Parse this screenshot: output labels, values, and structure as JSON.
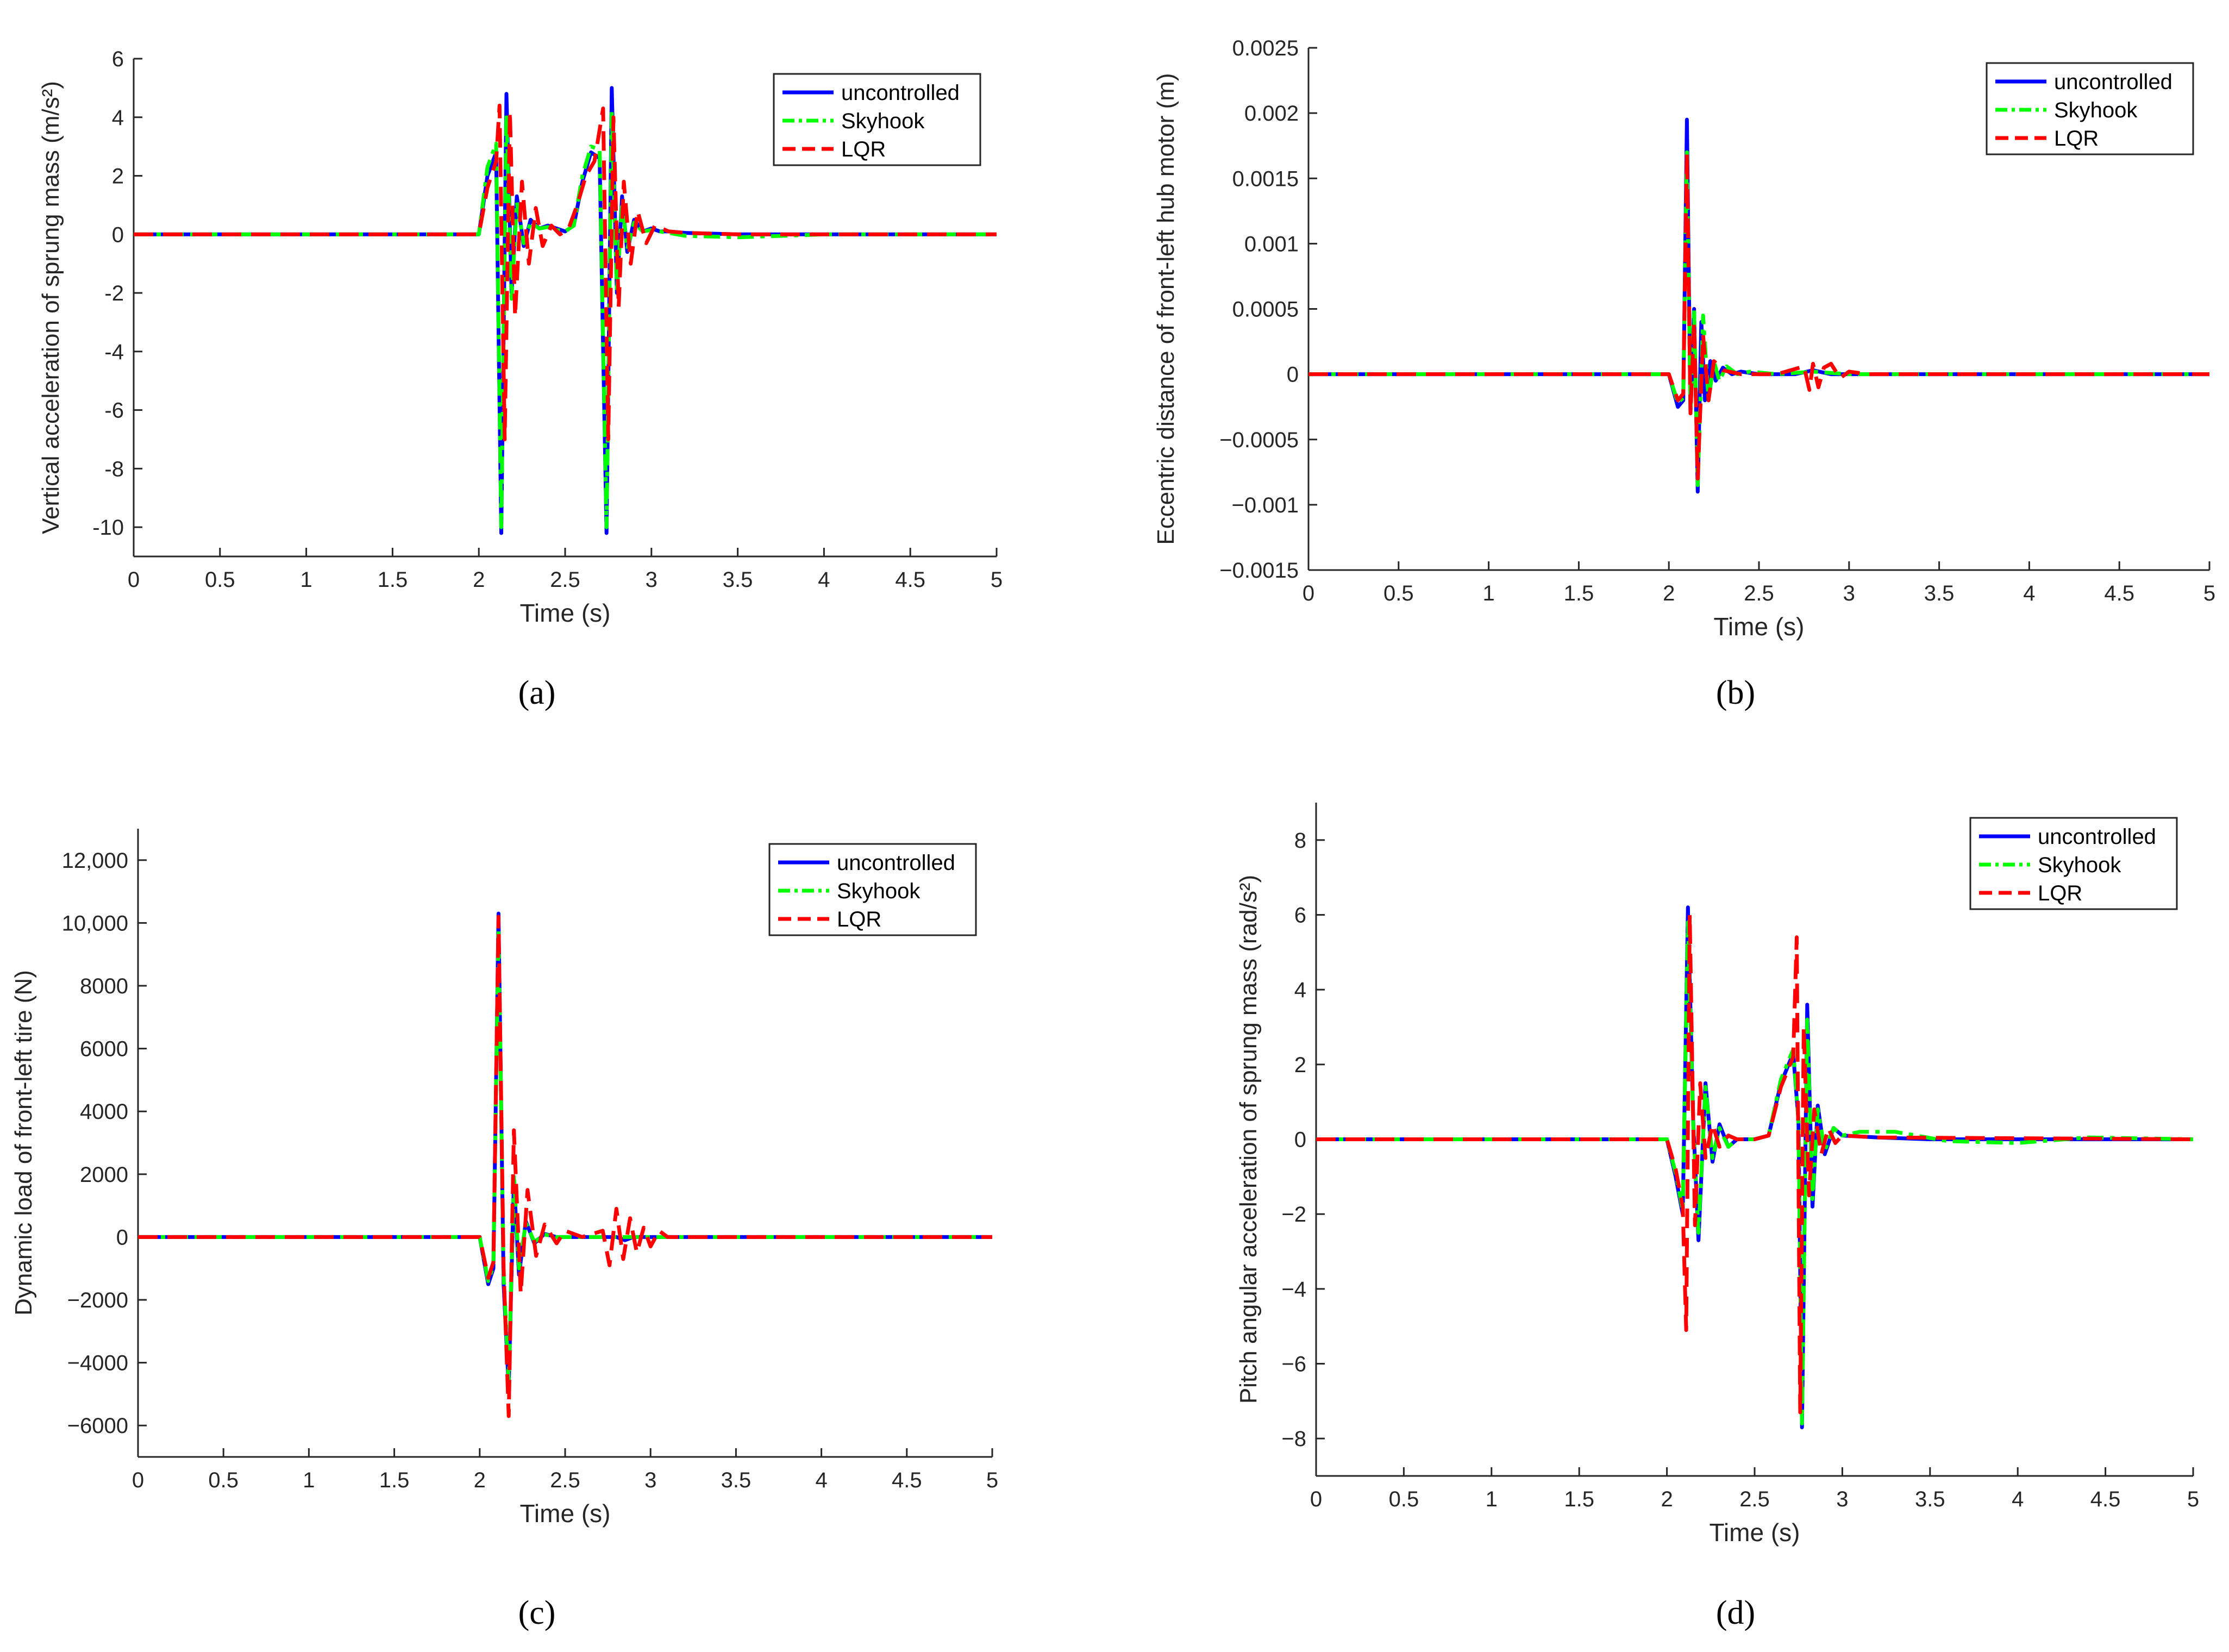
{
  "figure": {
    "panels": [
      {
        "label": "(a)"
      },
      {
        "label": "(b)"
      },
      {
        "label": "(c)"
      },
      {
        "label": "(d)"
      }
    ]
  },
  "series_styles": [
    {
      "name": "uncontrolled",
      "color": "#0000ff",
      "dash": "solid"
    },
    {
      "name": "Skyhook",
      "color": "#00ff00",
      "dash": "dashdot"
    },
    {
      "name": "LQR",
      "color": "#ff0000",
      "dash": "dashed"
    }
  ],
  "chart_data": [
    {
      "type": "line",
      "panel_label": "(a)",
      "title": "",
      "xlabel": "Time (s)",
      "ylabel": "Vertical acceleration of sprung mass (m/s²)",
      "xlim": [
        0,
        5
      ],
      "ylim": [
        -11,
        6
      ],
      "xticks": [
        0,
        0.5,
        1,
        1.5,
        2,
        2.5,
        3,
        3.5,
        4,
        4.5,
        5
      ],
      "xtick_labels": [
        "0",
        "0.5",
        "1",
        "1.5",
        "2",
        "2.5",
        "3",
        "3.5",
        "4",
        "4.5",
        "5"
      ],
      "yticks": [
        -10,
        -8,
        -6,
        -4,
        -2,
        0,
        2,
        4,
        6
      ],
      "ytick_labels": [
        "-10",
        "-8",
        "-6",
        "-4",
        "-2",
        "0",
        "2",
        "4",
        "6"
      ],
      "legend_position": "top-right",
      "series": [
        {
          "name": "uncontrolled",
          "x": [
            0,
            2.0,
            2.05,
            2.1,
            2.13,
            2.16,
            2.19,
            2.22,
            2.26,
            2.3,
            2.35,
            2.4,
            2.45,
            2.5,
            2.55,
            2.6,
            2.65,
            2.7,
            2.74,
            2.77,
            2.8,
            2.83,
            2.86,
            2.9,
            2.95,
            3.0,
            3.05,
            3.1,
            3.2,
            3.5,
            4.0,
            5.0
          ],
          "y": [
            0,
            0,
            2.0,
            2.8,
            -10.2,
            4.8,
            -2.0,
            1.3,
            -0.4,
            0.5,
            0.2,
            0.3,
            0.2,
            0.1,
            0.3,
            1.8,
            2.8,
            2.6,
            -10.2,
            5.0,
            -2.0,
            1.3,
            -0.6,
            0.5,
            0.1,
            0.2,
            0.1,
            0.1,
            0.05,
            0,
            0,
            0
          ]
        },
        {
          "name": "Skyhook",
          "x": [
            0,
            2.0,
            2.05,
            2.1,
            2.13,
            2.16,
            2.19,
            2.22,
            2.26,
            2.3,
            2.35,
            2.4,
            2.45,
            2.5,
            2.55,
            2.6,
            2.65,
            2.7,
            2.74,
            2.77,
            2.8,
            2.83,
            2.86,
            2.9,
            2.95,
            3.0,
            3.05,
            3.1,
            3.2,
            3.5,
            4.0,
            5.0
          ],
          "y": [
            0,
            0,
            2.3,
            3.1,
            -10.0,
            4.1,
            -2.2,
            1.1,
            -0.3,
            0.4,
            0.2,
            0.25,
            0.15,
            0.1,
            0.3,
            2.0,
            3.0,
            2.9,
            -10.0,
            4.2,
            -2.0,
            1.1,
            -0.5,
            0.4,
            0.1,
            0.15,
            0.1,
            0.05,
            -0.05,
            -0.1,
            0,
            0
          ]
        },
        {
          "name": "LQR",
          "x": [
            0,
            2.0,
            2.05,
            2.1,
            2.12,
            2.15,
            2.18,
            2.21,
            2.25,
            2.29,
            2.33,
            2.37,
            2.42,
            2.47,
            2.52,
            2.57,
            2.62,
            2.67,
            2.72,
            2.75,
            2.78,
            2.81,
            2.84,
            2.88,
            2.92,
            2.97,
            3.02,
            3.1,
            3.2,
            3.5,
            5.0
          ],
          "y": [
            0,
            0,
            1.6,
            2.5,
            4.4,
            -7.0,
            4.2,
            -2.8,
            1.8,
            -1.0,
            0.9,
            -0.4,
            0.3,
            0.0,
            0.2,
            1.0,
            2.0,
            2.5,
            4.3,
            -7.0,
            4.0,
            -2.5,
            1.8,
            -1.0,
            0.8,
            -0.3,
            0.3,
            0.1,
            0.05,
            0,
            0
          ]
        }
      ]
    },
    {
      "type": "line",
      "panel_label": "(b)",
      "title": "",
      "xlabel": "Time (s)",
      "ylabel": "Eccentric distance of front-left hub motor (m)",
      "xlim": [
        0,
        5
      ],
      "ylim": [
        -0.0015,
        0.0025
      ],
      "xticks": [
        0,
        0.5,
        1,
        1.5,
        2,
        2.5,
        3,
        3.5,
        4,
        4.5,
        5
      ],
      "xtick_labels": [
        "0",
        "0.5",
        "1",
        "1.5",
        "2",
        "2.5",
        "3",
        "3.5",
        "4",
        "4.5",
        "5"
      ],
      "yticks": [
        -0.0015,
        -0.001,
        -0.0005,
        0,
        0.0005,
        0.001,
        0.0015,
        0.002,
        0.0025
      ],
      "ytick_labels": [
        "−0.0015",
        "−0.001",
        "−0.0005",
        "0",
        "0.0005",
        "0.001",
        "0.0015",
        "0.002",
        "0.0025"
      ],
      "legend_position": "top-right",
      "series": [
        {
          "name": "uncontrolled",
          "x": [
            0,
            2.0,
            2.05,
            2.08,
            2.1,
            2.12,
            2.14,
            2.16,
            2.18,
            2.2,
            2.23,
            2.26,
            2.3,
            2.35,
            2.4,
            2.5,
            2.7,
            2.8,
            2.9,
            3.0,
            5.0
          ],
          "y": [
            0,
            0,
            -0.00025,
            -0.0002,
            0.00195,
            -0.0003,
            0.0005,
            -0.0009,
            0.0004,
            -0.0002,
            0.0001,
            -5e-05,
            5e-05,
            0.0,
            2e-05,
            0.0,
            0.0,
            3e-05,
            0.0,
            0.0,
            0
          ]
        },
        {
          "name": "Skyhook",
          "x": [
            0,
            2.0,
            2.05,
            2.08,
            2.1,
            2.12,
            2.14,
            2.16,
            2.19,
            2.22,
            2.25,
            2.28,
            2.32,
            2.38,
            2.45,
            2.6,
            2.8,
            3.0,
            5.0
          ],
          "y": [
            0,
            0,
            -0.00022,
            -0.00018,
            0.0017,
            -0.0003,
            0.0005,
            -0.00085,
            0.00045,
            -0.0002,
            0.0001,
            -5e-05,
            6e-05,
            0.0,
            2e-05,
            0.0,
            2e-05,
            0.0,
            0
          ]
        },
        {
          "name": "LQR",
          "x": [
            0,
            2.0,
            2.05,
            2.08,
            2.1,
            2.12,
            2.14,
            2.16,
            2.19,
            2.22,
            2.25,
            2.3,
            2.4,
            2.6,
            2.75,
            2.78,
            2.8,
            2.83,
            2.86,
            2.9,
            2.95,
            3.0,
            3.1,
            5.0
          ],
          "y": [
            0,
            0,
            -0.0002,
            -0.00015,
            0.0017,
            -0.0003,
            0.0004,
            -0.0008,
            0.0003,
            -0.0002,
            0.0001,
            3e-05,
            0.0,
            0.0,
            6e-05,
            -0.00012,
            8e-05,
            -0.0001,
            5e-05,
            8e-05,
            -3e-05,
            2e-05,
            0.0,
            0
          ]
        }
      ]
    },
    {
      "type": "line",
      "panel_label": "(c)",
      "title": "",
      "xlabel": "Time (s)",
      "ylabel": "Dynamic load of front-left tire (N)",
      "xlim": [
        0,
        5
      ],
      "ylim": [
        -7000,
        13000
      ],
      "xticks": [
        0,
        0.5,
        1,
        1.5,
        2,
        2.5,
        3,
        3.5,
        4,
        4.5,
        5
      ],
      "xtick_labels": [
        "0",
        "0.5",
        "1",
        "1.5",
        "2",
        "2.5",
        "3",
        "3.5",
        "4",
        "4.5",
        "5"
      ],
      "yticks": [
        -6000,
        -4000,
        -2000,
        0,
        2000,
        4000,
        6000,
        8000,
        10000,
        12000
      ],
      "ytick_labels": [
        "−6000",
        "−4000",
        "−2000",
        "0",
        "2000",
        "4000",
        "6000",
        "8000",
        "10,000",
        "12,000"
      ],
      "legend_position": "top-right",
      "series": [
        {
          "name": "uncontrolled",
          "x": [
            0,
            2.0,
            2.05,
            2.08,
            2.11,
            2.14,
            2.17,
            2.2,
            2.23,
            2.27,
            2.32,
            2.38,
            2.45,
            2.6,
            2.8,
            2.85,
            2.9,
            3.0,
            5.0
          ],
          "y": [
            0,
            0,
            -1500,
            -1000,
            10300,
            -1500,
            -4800,
            1800,
            -1200,
            500,
            -200,
            100,
            0,
            0,
            0,
            -100,
            0,
            0,
            0
          ]
        },
        {
          "name": "Skyhook",
          "x": [
            0,
            2.0,
            2.05,
            2.08,
            2.11,
            2.14,
            2.17,
            2.2,
            2.23,
            2.27,
            2.32,
            2.38,
            2.45,
            2.6,
            2.8,
            3.0,
            5.0
          ],
          "y": [
            0,
            0,
            -1400,
            -900,
            9800,
            -1200,
            -4600,
            2000,
            -1000,
            450,
            -150,
            80,
            0,
            0,
            0,
            0,
            0
          ]
        },
        {
          "name": "LQR",
          "x": [
            0,
            2.0,
            2.05,
            2.08,
            2.11,
            2.14,
            2.17,
            2.2,
            2.24,
            2.28,
            2.33,
            2.38,
            2.45,
            2.5,
            2.6,
            2.72,
            2.76,
            2.8,
            2.84,
            2.88,
            2.92,
            2.96,
            3.0,
            3.05,
            3.1,
            3.2,
            5.0
          ],
          "y": [
            0,
            0,
            -1300,
            -800,
            10200,
            -1000,
            -5700,
            3400,
            -1800,
            1500,
            -600,
            400,
            -200,
            200,
            0,
            200,
            -900,
            900,
            -700,
            600,
            -500,
            300,
            -300,
            200,
            0,
            0,
            0
          ]
        }
      ]
    },
    {
      "type": "line",
      "panel_label": "(d)",
      "title": "",
      "xlabel": "Time (s)",
      "ylabel": "Pitch angular acceleration of sprung mass (rad/s²)",
      "xlim": [
        0,
        5
      ],
      "ylim": [
        -9,
        9
      ],
      "xticks": [
        0,
        0.5,
        1,
        1.5,
        2,
        2.5,
        3,
        3.5,
        4,
        4.5,
        5
      ],
      "xtick_labels": [
        "0",
        "0.5",
        "1",
        "1.5",
        "2",
        "2.5",
        "3",
        "3.5",
        "4",
        "4.5",
        "5"
      ],
      "yticks": [
        -8,
        -6,
        -4,
        -2,
        0,
        2,
        4,
        6,
        8
      ],
      "ytick_labels": [
        "−8",
        "−6",
        "−4",
        "−2",
        "0",
        "2",
        "4",
        "6",
        "8"
      ],
      "legend_position": "top-right",
      "series": [
        {
          "name": "uncontrolled",
          "x": [
            0,
            2.0,
            2.05,
            2.09,
            2.12,
            2.15,
            2.18,
            2.22,
            2.26,
            2.3,
            2.35,
            2.4,
            2.5,
            2.58,
            2.65,
            2.72,
            2.75,
            2.77,
            2.8,
            2.83,
            2.86,
            2.9,
            2.95,
            3.0,
            3.2,
            3.5,
            4.0,
            5.0
          ],
          "y": [
            0,
            0,
            -1.0,
            -2.0,
            6.2,
            0.5,
            -2.7,
            1.5,
            -0.6,
            0.4,
            -0.2,
            0.0,
            0.0,
            0.1,
            1.5,
            2.3,
            0.5,
            -7.7,
            3.6,
            -1.8,
            0.9,
            -0.4,
            0.3,
            0.1,
            0.05,
            0,
            0,
            0
          ]
        },
        {
          "name": "Skyhook",
          "x": [
            0,
            2.0,
            2.05,
            2.09,
            2.12,
            2.15,
            2.18,
            2.22,
            2.26,
            2.3,
            2.35,
            2.4,
            2.5,
            2.58,
            2.65,
            2.72,
            2.75,
            2.77,
            2.8,
            2.83,
            2.86,
            2.9,
            2.95,
            3.0,
            3.1,
            3.3,
            3.6,
            4.0,
            4.4,
            5.0
          ],
          "y": [
            0,
            0,
            -0.9,
            -1.9,
            5.8,
            0.4,
            -2.5,
            1.4,
            -0.5,
            0.3,
            -0.2,
            0.0,
            0.0,
            0.1,
            1.6,
            2.4,
            0.5,
            -7.6,
            3.2,
            -1.6,
            0.8,
            -0.3,
            0.3,
            0.1,
            0.2,
            0.2,
            -0.05,
            -0.1,
            0.05,
            0
          ]
        },
        {
          "name": "LQR",
          "x": [
            0,
            2.0,
            2.05,
            2.09,
            2.11,
            2.13,
            2.16,
            2.19,
            2.22,
            2.26,
            2.3,
            2.35,
            2.4,
            2.5,
            2.58,
            2.65,
            2.72,
            2.74,
            2.76,
            2.78,
            2.81,
            2.84,
            2.88,
            2.92,
            2.96,
            3.0,
            3.2,
            5.0
          ],
          "y": [
            0,
            0,
            -0.8,
            -1.8,
            -5.1,
            6.0,
            -2.3,
            1.5,
            -0.5,
            0.4,
            -0.2,
            0.1,
            0.0,
            0.0,
            0.1,
            1.4,
            2.2,
            5.4,
            -7.3,
            3.0,
            -1.5,
            0.8,
            -0.4,
            0.3,
            -0.1,
            0.1,
            0.05,
            0
          ]
        }
      ]
    }
  ]
}
